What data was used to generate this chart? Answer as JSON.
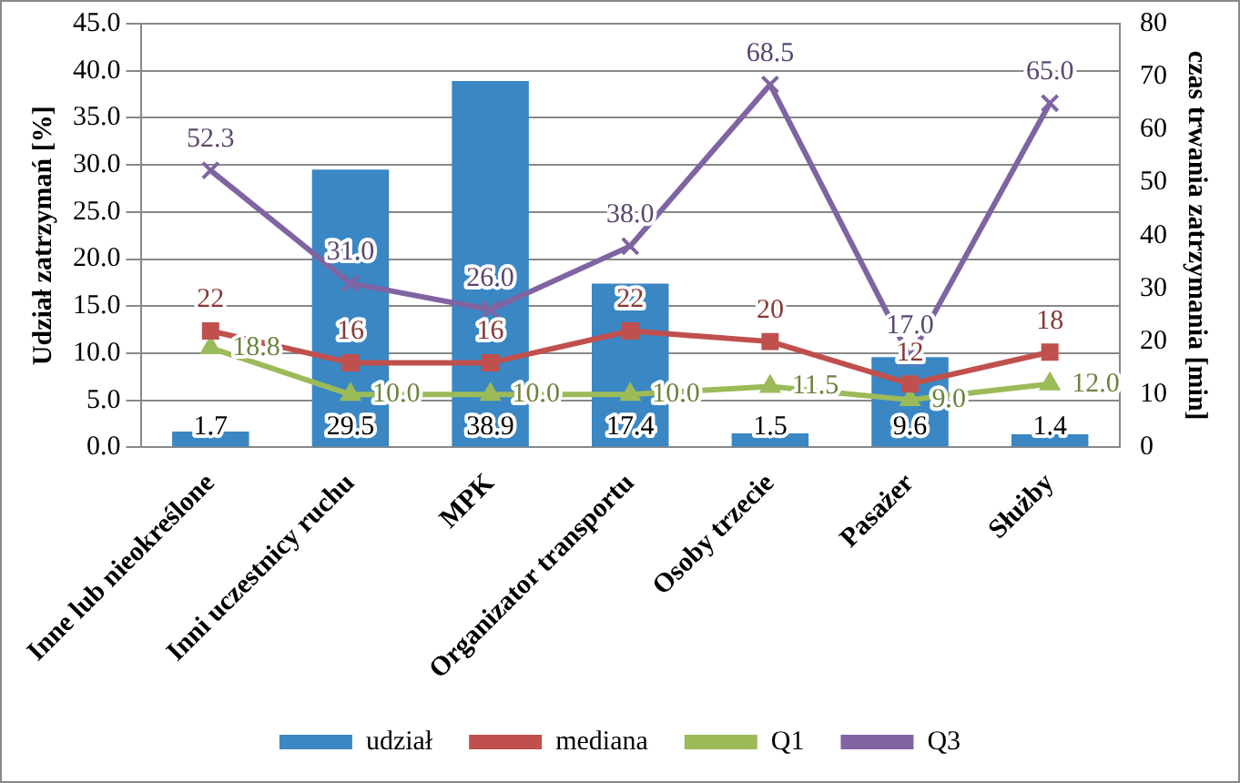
{
  "chart_data": {
    "type": "bar",
    "categories": [
      "Inne lub nieokreślone",
      "Inni uczestnicy ruchu",
      "MPK",
      "Organizator transportu",
      "Osoby trzecie",
      "Pasażer",
      "Służby"
    ],
    "ylabel": "Udział zatrzymań [%]",
    "y2label": "czas trwania zatrzymania [min]",
    "ylim": [
      0,
      45
    ],
    "yticks": [
      {
        "value": 0,
        "label": "0.0"
      },
      {
        "value": 5,
        "label": "5.0"
      },
      {
        "value": 10,
        "label": "10.0"
      },
      {
        "value": 15,
        "label": "15.0"
      },
      {
        "value": 20,
        "label": "20.0"
      },
      {
        "value": 25,
        "label": "25.0"
      },
      {
        "value": 30,
        "label": "30.0"
      },
      {
        "value": 35,
        "label": "35.0"
      },
      {
        "value": 40,
        "label": "40.0"
      },
      {
        "value": 45,
        "label": "45.0"
      }
    ],
    "y2lim": [
      0,
      80
    ],
    "y2ticks": [
      0,
      10,
      20,
      30,
      40,
      50,
      60,
      70,
      80
    ],
    "grid": "y",
    "legend": "bottom",
    "series": [
      {
        "name": "udział",
        "color": "#3a87c4",
        "values": [
          1.7,
          29.5,
          38.9,
          17.4,
          1.5,
          9.6,
          1.4
        ],
        "value_labels": [
          "1.7",
          "29.5",
          "38.9",
          "17.4",
          "1.5",
          "9.6",
          "1.4"
        ]
      },
      {
        "name": "mediana",
        "type": "line",
        "axis": "y2",
        "marker": "square",
        "color": "#c0504d",
        "values": [
          22,
          16,
          16,
          22,
          20,
          12,
          18
        ],
        "value_labels": [
          "22",
          "16",
          "16",
          "22",
          "20",
          "12",
          "18"
        ]
      },
      {
        "name": "Q1",
        "type": "line",
        "axis": "y2",
        "marker": "triangle",
        "color": "#9bbb59",
        "values": [
          18.8,
          10.0,
          10.0,
          10.0,
          11.5,
          9.0,
          12.0
        ],
        "value_labels": [
          "18.8",
          "10.0",
          "10.0",
          "10.0",
          "11.5",
          "9.0",
          "12.0"
        ]
      },
      {
        "name": "Q3",
        "type": "line",
        "axis": "y2",
        "marker": "cross",
        "color": "#8064a2",
        "values": [
          52.3,
          31.0,
          26.0,
          38.0,
          68.5,
          17.0,
          65.0
        ],
        "value_labels": [
          "52.3",
          "31.0",
          "26.0",
          "38.0",
          "68.5",
          "17.0",
          "65.0"
        ]
      }
    ]
  }
}
